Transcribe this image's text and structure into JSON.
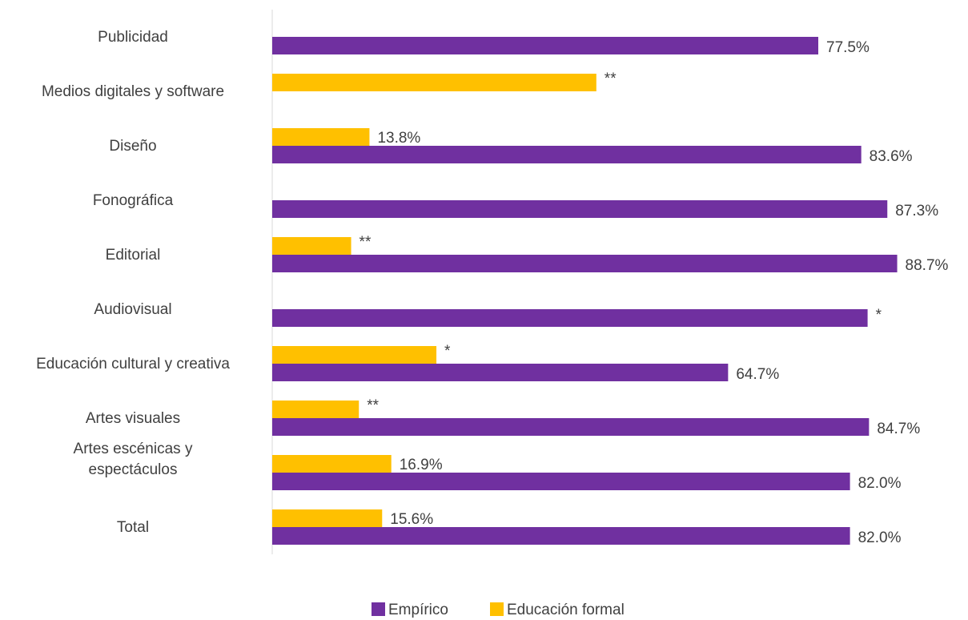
{
  "chart_data": {
    "type": "bar",
    "orientation": "horizontal",
    "categories": [
      [
        "Publicidad"
      ],
      [
        "Medios digitales y software"
      ],
      [
        "Diseño"
      ],
      [
        "Fonográfica"
      ],
      [
        "Editorial"
      ],
      [
        "Audiovisual"
      ],
      [
        "Educación cultural y creativa"
      ],
      [
        "Artes visuales"
      ],
      [
        "Artes escénicas y",
        "espectáculos"
      ],
      [
        "Total"
      ]
    ],
    "series": [
      {
        "name": "Empírico",
        "color": "#7030A0",
        "values": [
          77.5,
          null,
          83.6,
          87.3,
          88.7,
          84.5,
          64.7,
          84.7,
          82.0,
          82.0
        ],
        "labels": [
          "77.5%",
          "",
          "83.6%",
          "87.3%",
          "88.7%",
          "*",
          "64.7%",
          "84.7%",
          "82.0%",
          "82.0%"
        ]
      },
      {
        "name": "Educación formal",
        "color": "#FFC000",
        "values": [
          null,
          46.0,
          13.8,
          null,
          11.2,
          null,
          23.3,
          12.3,
          16.9,
          15.6
        ],
        "labels": [
          "",
          "**",
          "13.8%",
          "",
          "**",
          "",
          "*",
          "**",
          "16.9%",
          "15.6%"
        ]
      }
    ],
    "xlim": [
      0,
      100
    ],
    "grid": false,
    "legend_position": "bottom"
  }
}
